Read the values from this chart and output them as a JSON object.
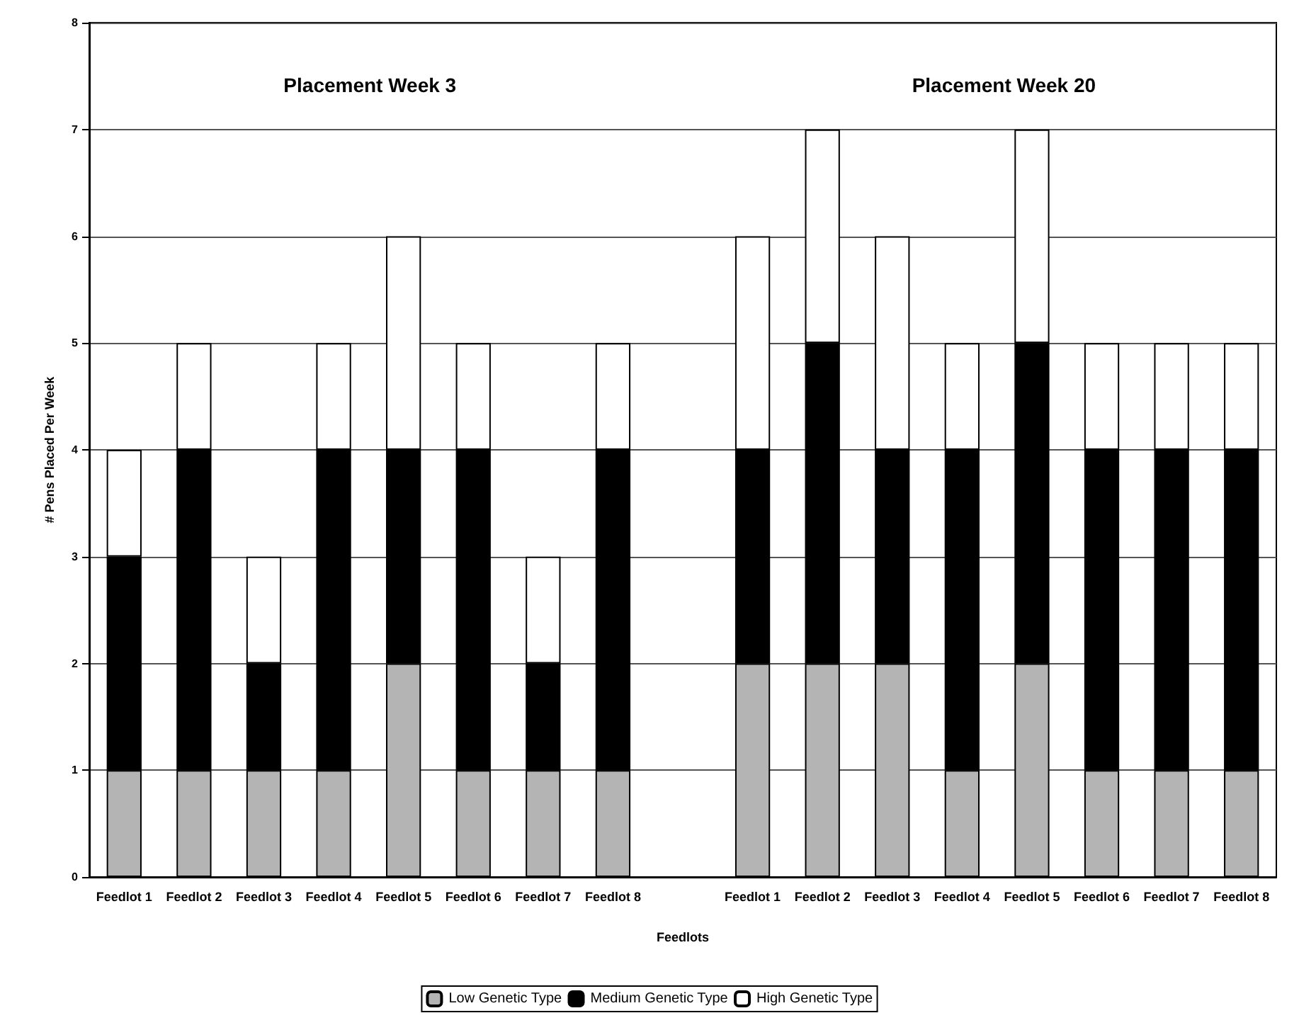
{
  "chart_data": {
    "type": "bar",
    "stacked": true,
    "xlabel": "Feedlots",
    "ylabel": "# Pens Placed Per Week",
    "annotations": [
      "Placement Week 3",
      "Placement Week 20"
    ],
    "categories": [
      "Feedlot 1",
      "Feedlot 2",
      "Feedlot 3",
      "Feedlot 4",
      "Feedlot 5",
      "Feedlot 6",
      "Feedlot 7",
      "Feedlot 8",
      null,
      "Feedlot 1",
      "Feedlot 2",
      "Feedlot 3",
      "Feedlot 4",
      "Feedlot 5",
      "Feedlot 6",
      "Feedlot 7",
      "Feedlot 8"
    ],
    "series": [
      {
        "name": "Low Genetic Type",
        "color": "#b4b4b4",
        "values": [
          1,
          1,
          1,
          1,
          2,
          1,
          1,
          1,
          null,
          2,
          2,
          2,
          1,
          2,
          1,
          1,
          1
        ]
      },
      {
        "name": "Medium Genetic Type",
        "color": "#000000",
        "values": [
          2,
          3,
          1,
          3,
          2,
          3,
          1,
          3,
          null,
          2,
          3,
          2,
          3,
          3,
          3,
          3,
          3
        ]
      },
      {
        "name": "High Genetic Type",
        "color": "#ffffff",
        "values": [
          1,
          1,
          1,
          1,
          2,
          1,
          1,
          1,
          null,
          2,
          2,
          2,
          1,
          2,
          1,
          1,
          1
        ]
      }
    ],
    "ylim": [
      0,
      8
    ],
    "yticks": [
      0,
      1,
      2,
      3,
      4,
      5,
      6,
      7,
      8
    ],
    "grid": "y",
    "legend": "bottom"
  }
}
